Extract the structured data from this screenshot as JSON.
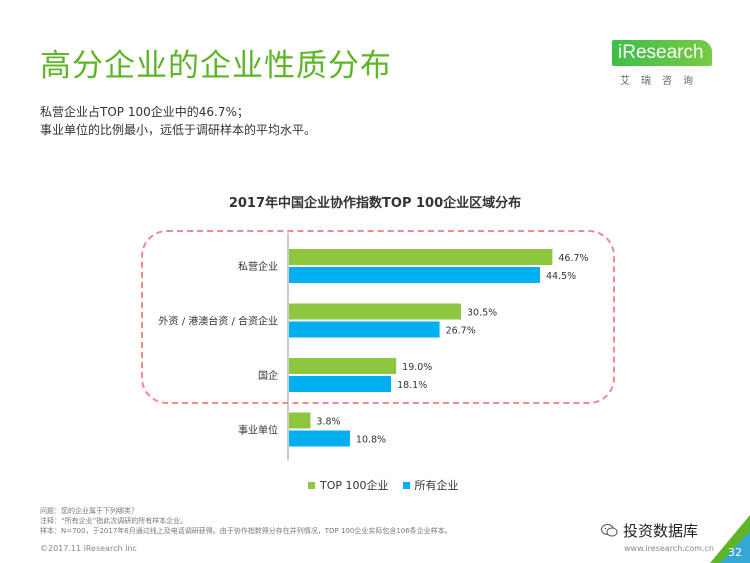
{
  "page": {
    "title": "高分企业的企业性质分布",
    "summary_lines": [
      "私营企业占TOP 100企业中的46.7%；",
      "事业单位的比例最小，远低于调研样本的平均水平。"
    ],
    "notes": [
      "问题：您的企业属于下列哪类？",
      "注释：“所有企业”指此次调研的所有样本企业。",
      "样本：N=700，于2017年6月通过线上及电话调研获得。由于协作指数得分存在并列情况，TOP 100企业实际包含106条企业样本。"
    ],
    "footer_left": "©2017.11 iResearch Inc",
    "footer_right": "www.iresearch.com.cn",
    "page_number": "32",
    "watermark": "投资数据库"
  },
  "logo": {
    "text": "iResearch",
    "sub": "艾瑞咨询"
  },
  "colors": {
    "green": "#8dc63f",
    "blue": "#00b0f0",
    "title_green": "#5fb528",
    "dash": "#f08a8e"
  },
  "chart_data": {
    "type": "bar",
    "orientation": "horizontal",
    "title": "2017年中国企业协作指数TOP 100企业区域分布",
    "categories": [
      "私营企业",
      "外资 / 港澳台资 / 合资企业",
      "国企",
      "事业单位"
    ],
    "series": [
      {
        "name": "TOP 100企业",
        "values": [
          46.7,
          30.5,
          19.0,
          3.8
        ],
        "labels": [
          "46.7%",
          "30.5%",
          "19.0%",
          "3.8%"
        ],
        "color": "#8dc63f"
      },
      {
        "name": "所有企业",
        "values": [
          44.5,
          26.7,
          18.1,
          10.8
        ],
        "labels": [
          "44.5%",
          "26.7%",
          "18.1%",
          "10.8%"
        ],
        "color": "#00b0f0"
      }
    ],
    "xlim": [
      0,
      50
    ],
    "unit": "%"
  }
}
